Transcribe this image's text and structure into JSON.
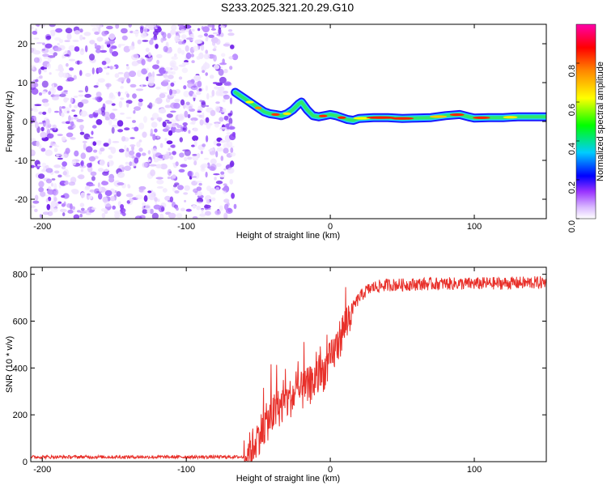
{
  "title": "S233.2025.321.20.29.G10",
  "chart_data": [
    {
      "type": "heatmap",
      "xlabel": "Height of straight line (km)",
      "ylabel": "Frequency (Hz)",
      "xlim": [
        -208,
        150
      ],
      "ylim": [
        -25,
        25
      ],
      "x_ticks": [
        "-200",
        "-100",
        "0",
        "100"
      ],
      "y_ticks": [
        "-20",
        "-10",
        "0",
        "10",
        "20"
      ],
      "noise_region_x": [
        -208,
        -66
      ],
      "trace": {
        "x": [
          -66,
          -62,
          -58,
          -54,
          -50,
          -46,
          -42,
          -38,
          -34,
          -30,
          -26,
          -22,
          -20,
          -16,
          -12,
          -8,
          -4,
          0,
          4,
          8,
          12,
          16,
          20,
          30,
          40,
          50,
          60,
          70,
          80,
          90,
          96,
          100,
          110,
          120,
          130,
          140,
          150
        ],
        "y": [
          7.5,
          6.5,
          5.5,
          4.5,
          3.5,
          2.5,
          2.0,
          1.8,
          1.5,
          2.0,
          3.0,
          4.5,
          5.0,
          3.0,
          1.5,
          1.2,
          1.5,
          1.8,
          1.5,
          1.0,
          0.5,
          0.3,
          0.8,
          1.0,
          1.0,
          0.8,
          0.9,
          1.0,
          1.5,
          1.8,
          1.2,
          0.9,
          1.0,
          1.0,
          1.2,
          1.2,
          1.2
        ]
      }
    },
    {
      "type": "line",
      "xlabel": "Height of straight line (km)",
      "ylabel": "SNR (10 * v/v)",
      "xlim": [
        -208,
        150
      ],
      "ylim": [
        0,
        830
      ],
      "x_ticks": [
        "-200",
        "-100",
        "0",
        "100"
      ],
      "y_ticks": [
        "0",
        "200",
        "400",
        "600",
        "800"
      ],
      "series_color": "#e8302a",
      "anchor_x": [
        -208,
        -60,
        -55,
        -50,
        -45,
        -40,
        -35,
        -30,
        -25,
        -20,
        -15,
        -10,
        -5,
        0,
        5,
        10,
        15,
        20,
        25,
        30,
        40,
        50,
        60,
        80,
        100,
        120,
        150
      ],
      "anchor_y": [
        20,
        20,
        50,
        110,
        160,
        200,
        235,
        260,
        285,
        300,
        320,
        350,
        380,
        430,
        500,
        580,
        650,
        700,
        730,
        745,
        755,
        755,
        758,
        760,
        760,
        762,
        765
      ]
    }
  ],
  "colorbar": {
    "label": "Normalized spectral amplitude",
    "range": [
      0,
      1
    ],
    "ticks": [
      "0.0",
      "0.2",
      "0.4",
      "0.6",
      "0.8"
    ],
    "colors": [
      "#ffffff",
      "#9933ff",
      "#0000ff",
      "#00ccff",
      "#00ff00",
      "#ffff00",
      "#ff8800",
      "#ff0000",
      "#ff00aa"
    ]
  }
}
